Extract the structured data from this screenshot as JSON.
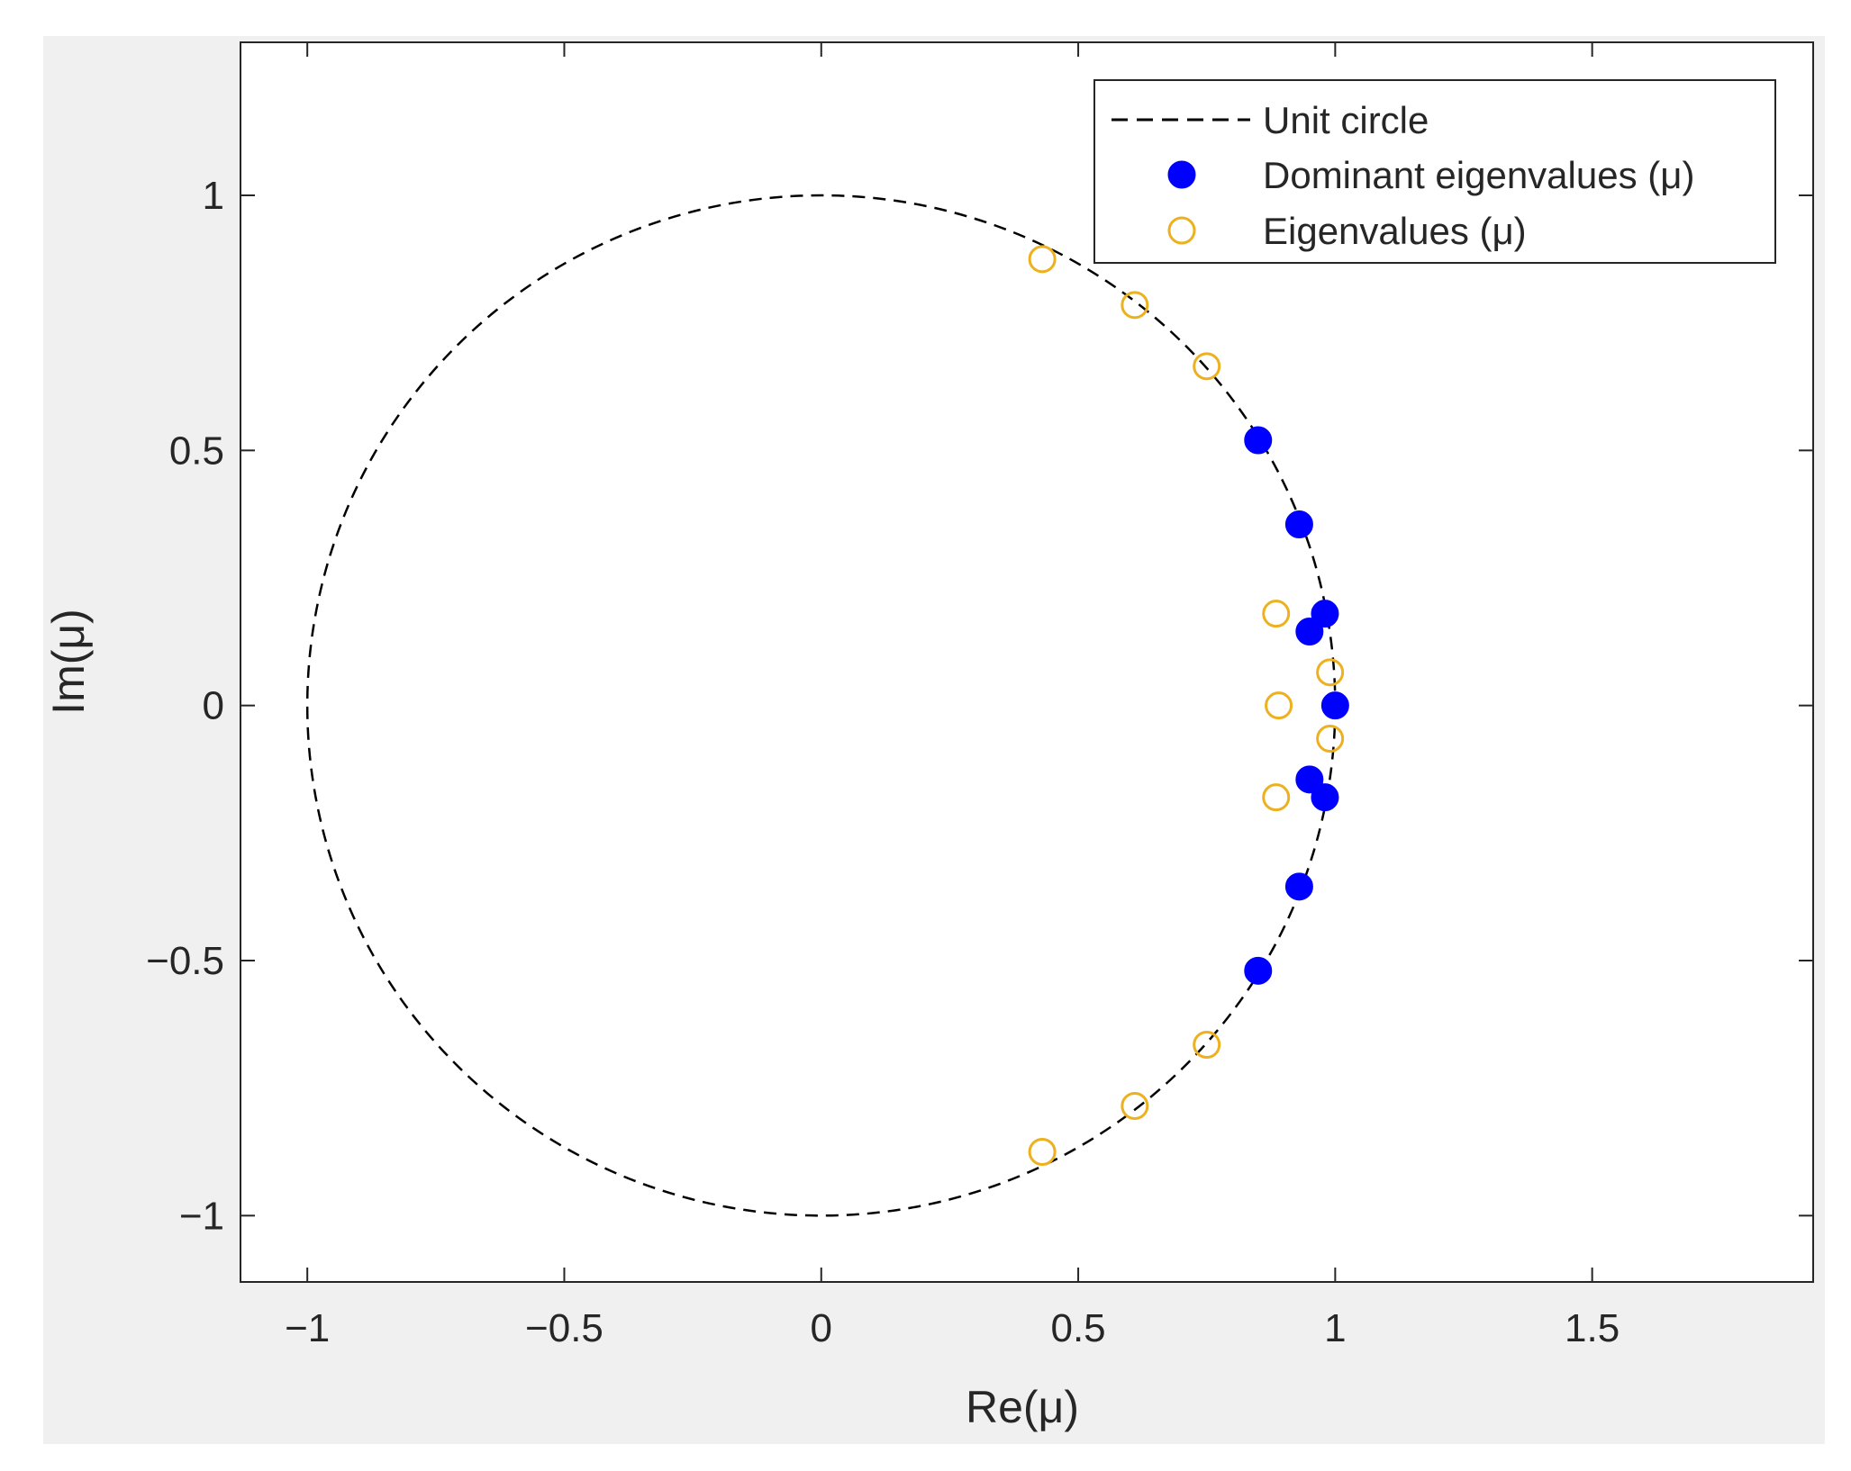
{
  "chart_data": {
    "type": "scatter",
    "xlabel": "Re(μ)",
    "ylabel": "Im(μ)",
    "xlim": [
      -1.13,
      1.93
    ],
    "ylim": [
      -1.13,
      1.3
    ],
    "x_ticks": [
      -1,
      -0.5,
      0,
      0.5,
      1,
      1.5
    ],
    "x_tick_labels": [
      "−1",
      "−0.5",
      "0",
      "0.5",
      "1",
      "1.5"
    ],
    "y_ticks": [
      -1,
      -0.5,
      0,
      0.5,
      1
    ],
    "y_tick_labels": [
      "−1",
      "−0.5",
      "0",
      "0.5",
      "1"
    ],
    "grid": false,
    "legend_position": "top-right",
    "series": [
      {
        "name": "Unit circle",
        "kind": "dashed-line",
        "color": "#000000",
        "center": [
          0,
          0
        ],
        "radius": 1
      },
      {
        "name": "Dominant eigenvalues (μ)",
        "kind": "filled-marker",
        "color": "#0000ff",
        "points": [
          [
            0.85,
            0.52
          ],
          [
            0.93,
            0.355
          ],
          [
            0.98,
            0.18
          ],
          [
            0.95,
            0.145
          ],
          [
            1.0,
            0.0
          ],
          [
            0.95,
            -0.145
          ],
          [
            0.98,
            -0.18
          ],
          [
            0.93,
            -0.355
          ],
          [
            0.85,
            -0.52
          ]
        ]
      },
      {
        "name": "Eigenvalues (μ)",
        "kind": "open-marker",
        "color": "#edb120",
        "points": [
          [
            0.43,
            0.875
          ],
          [
            0.61,
            0.785
          ],
          [
            0.75,
            0.665
          ],
          [
            0.885,
            0.18
          ],
          [
            0.99,
            0.065
          ],
          [
            0.89,
            0.0
          ],
          [
            0.99,
            -0.065
          ],
          [
            0.885,
            -0.18
          ],
          [
            0.75,
            -0.665
          ],
          [
            0.61,
            -0.785
          ],
          [
            0.43,
            -0.875
          ]
        ]
      }
    ]
  }
}
